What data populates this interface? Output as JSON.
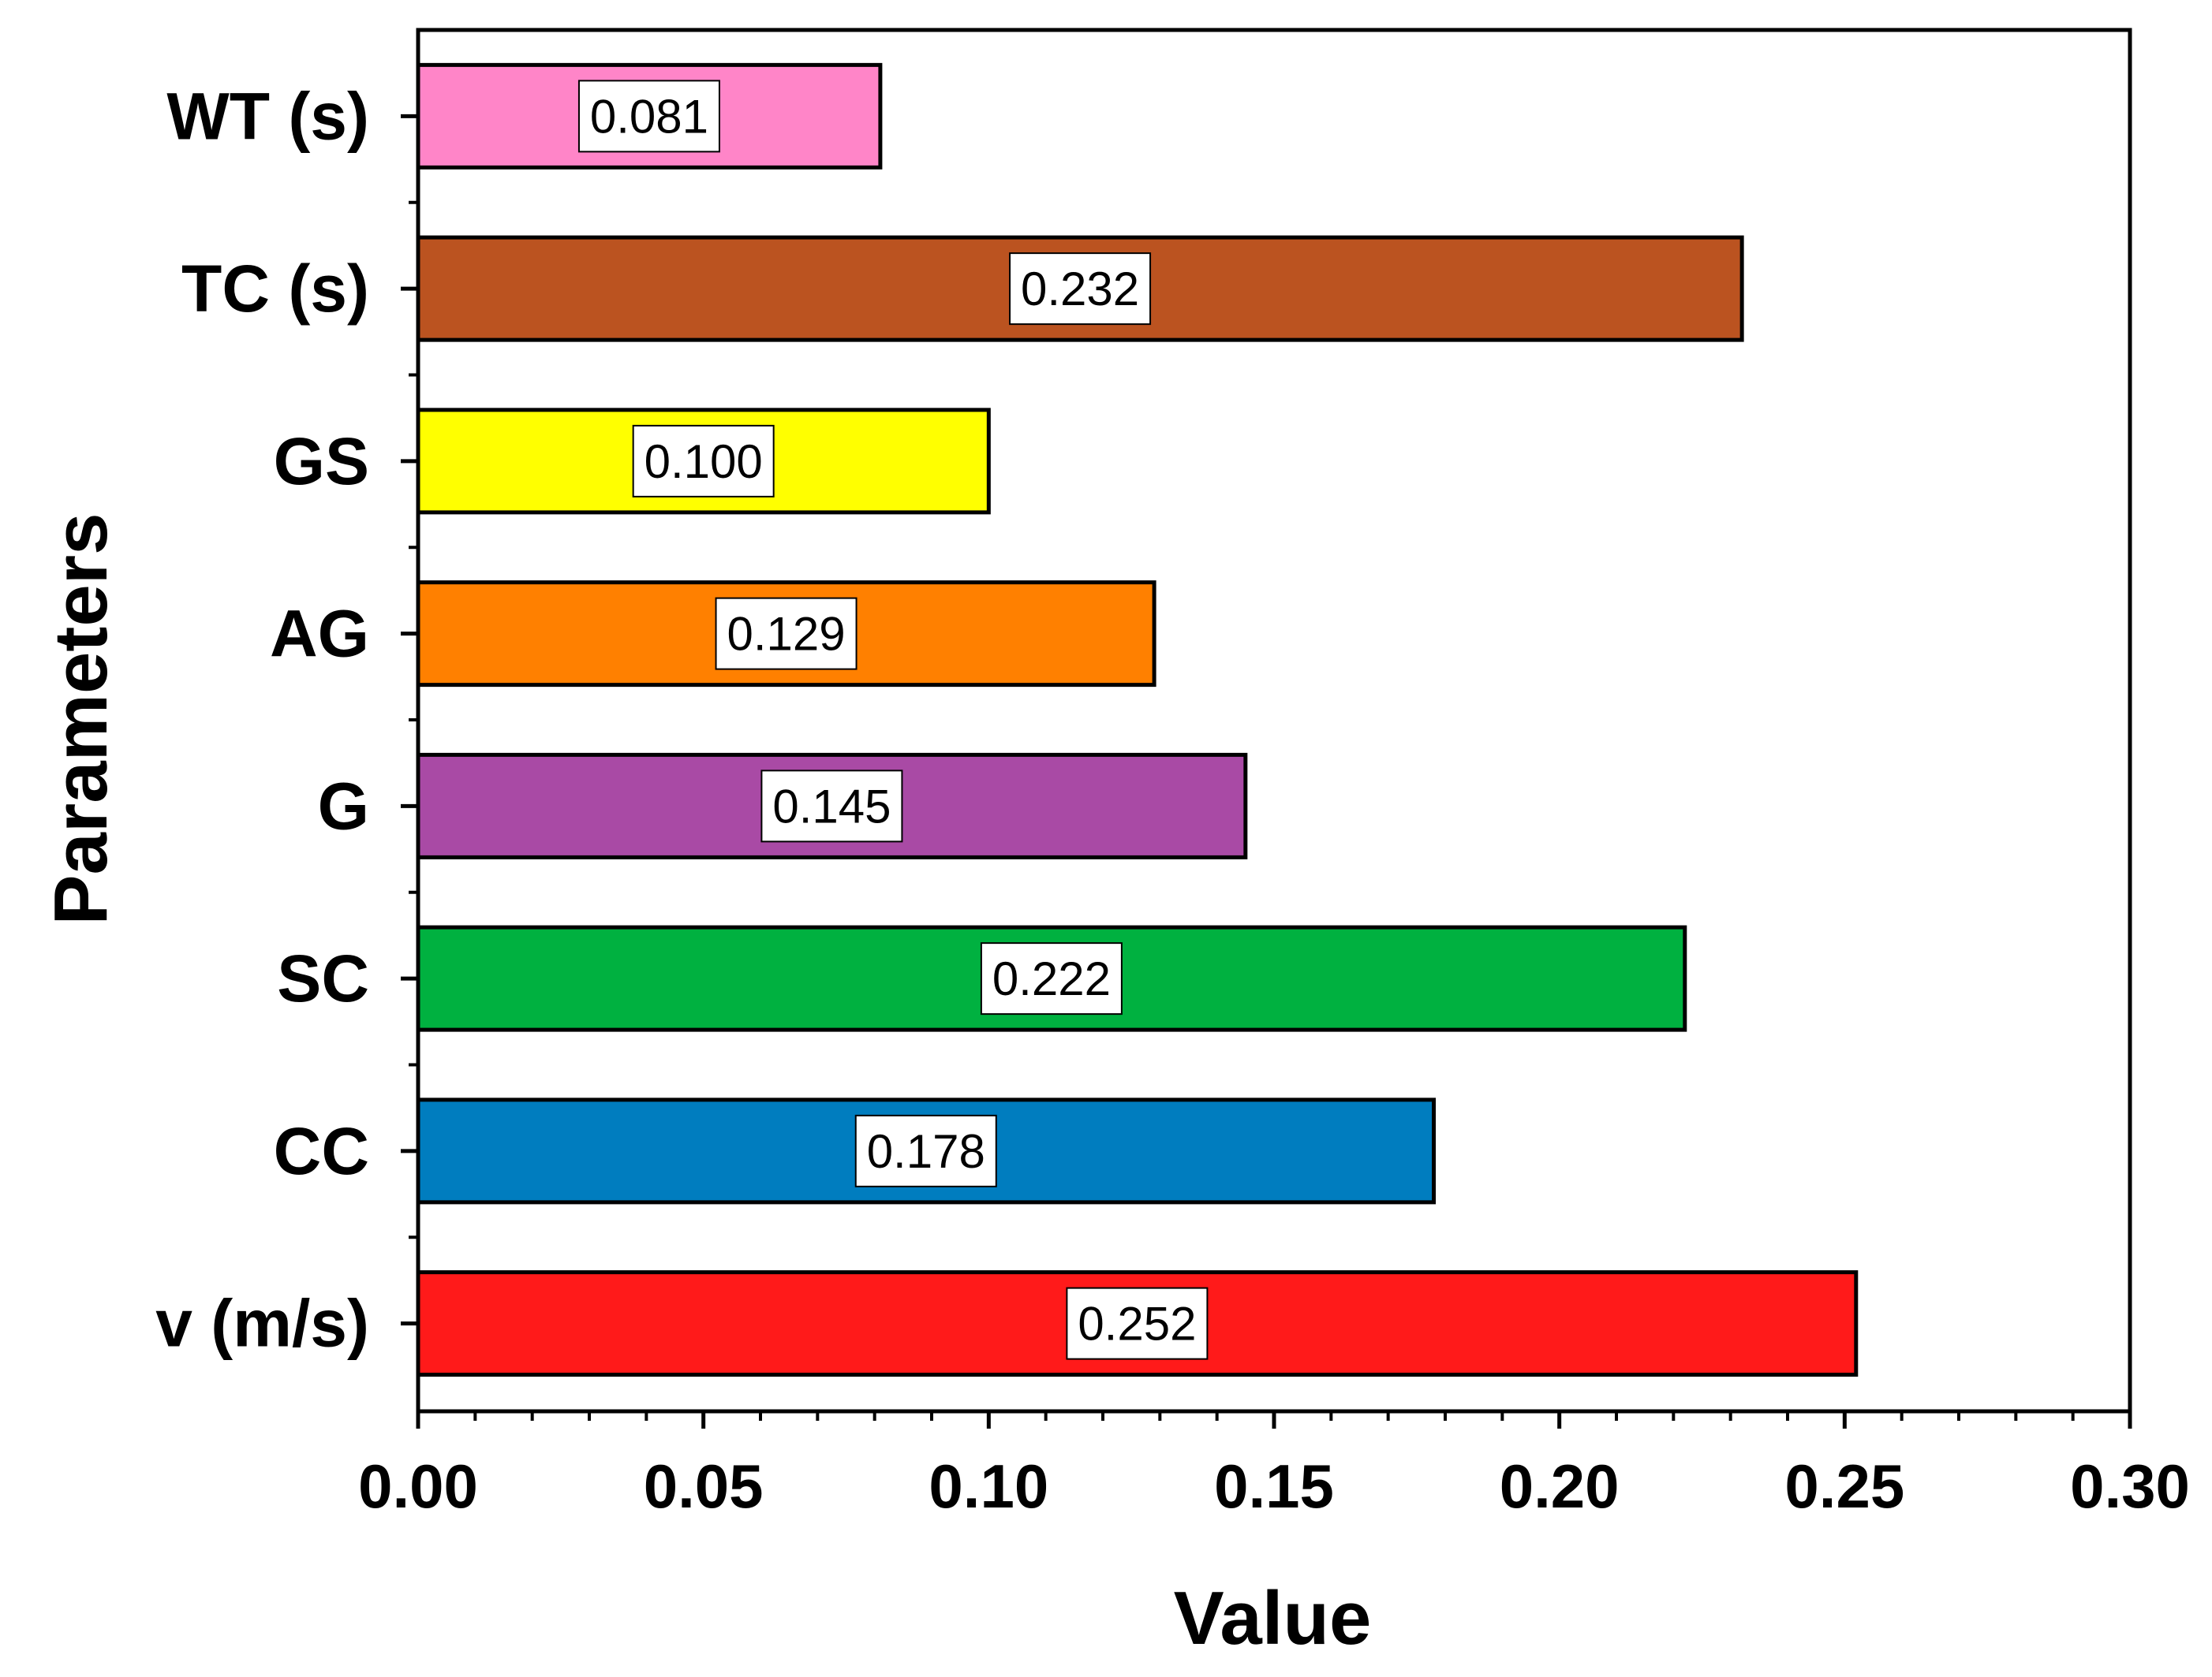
{
  "chart_data": {
    "type": "bar",
    "orientation": "horizontal",
    "title": "",
    "xlabel": "Value",
    "ylabel": "Parameters",
    "xlim": [
      0,
      0.3
    ],
    "x_ticks": [
      "0.00",
      "0.05",
      "0.10",
      "0.15",
      "0.20",
      "0.25",
      "0.30"
    ],
    "x_tick_values": [
      0,
      0.05,
      0.1,
      0.15,
      0.2,
      0.25,
      0.3
    ],
    "grid": false,
    "legend": "none",
    "categories": [
      "WT (s)",
      "TC (s)",
      "GS",
      "AG",
      "G",
      "SC",
      "CC",
      "v (m/s)"
    ],
    "values": [
      0.081,
      0.232,
      0.1,
      0.129,
      0.145,
      0.222,
      0.178,
      0.252
    ],
    "value_labels": [
      "0.081",
      "0.232",
      "0.100",
      "0.129",
      "0.145",
      "0.222",
      "0.178",
      "0.252"
    ],
    "colors": [
      "#ff85c8",
      "#bb5320",
      "#ffff00",
      "#ff8000",
      "#a94aa5",
      "#00b140",
      "#007dbf",
      "#ff1a1a"
    ]
  }
}
